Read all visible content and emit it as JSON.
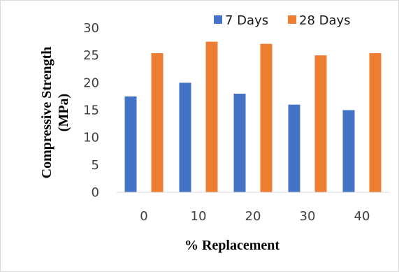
{
  "chart_data": {
    "type": "bar",
    "categories": [
      "0",
      "10",
      "20",
      "30",
      "40"
    ],
    "series": [
      {
        "name": "7 Days",
        "values": [
          17.5,
          20,
          18,
          16,
          15
        ],
        "color": "#4472c4"
      },
      {
        "name": "28 Days",
        "values": [
          25.4,
          27.5,
          27.1,
          25,
          25.4
        ],
        "color": "#ed7d31"
      }
    ],
    "xlabel": "% Replacement",
    "ylabel_lines": [
      "Compressive Strength",
      "(MPa)"
    ],
    "ylim": [
      0,
      30
    ],
    "yticks": [
      0,
      5,
      10,
      15,
      20,
      25,
      30
    ],
    "grid": false,
    "legend_position": "top"
  }
}
